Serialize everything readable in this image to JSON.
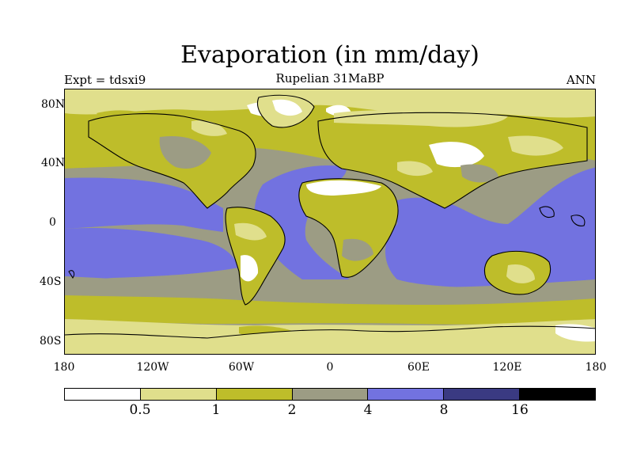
{
  "title": "Evaporation (in mm/day)",
  "subtitle": "Rupelian  31MaBP",
  "experiment_label": "Expt = tdsxi9",
  "season_label": "ANN",
  "map": {
    "projection": "cylindrical equidistant",
    "lat_ticks": [
      "80N",
      "40N",
      "0",
      "40S",
      "80S"
    ],
    "lon_ticks": [
      "180",
      "120W",
      "60W",
      "0",
      "60E",
      "120E",
      "180"
    ]
  },
  "colorbar": {
    "colors": [
      "#ffffff",
      "#e0df8c",
      "#bebd2a",
      "#9c9c84",
      "#7272e0",
      "#3a3a82",
      "#000000"
    ],
    "labels": [
      "0.5",
      "1",
      "2",
      "4",
      "8",
      "16"
    ]
  },
  "legend_colors": {
    "bin_0_0.5": "#ffffff",
    "bin_0.5_1": "#e0df8c",
    "bin_1_2": "#bebd2a",
    "bin_2_4": "#9c9c84",
    "bin_4_8": "#7272e0",
    "bin_8_16": "#3a3a82",
    "bin_16_up": "#000000"
  }
}
